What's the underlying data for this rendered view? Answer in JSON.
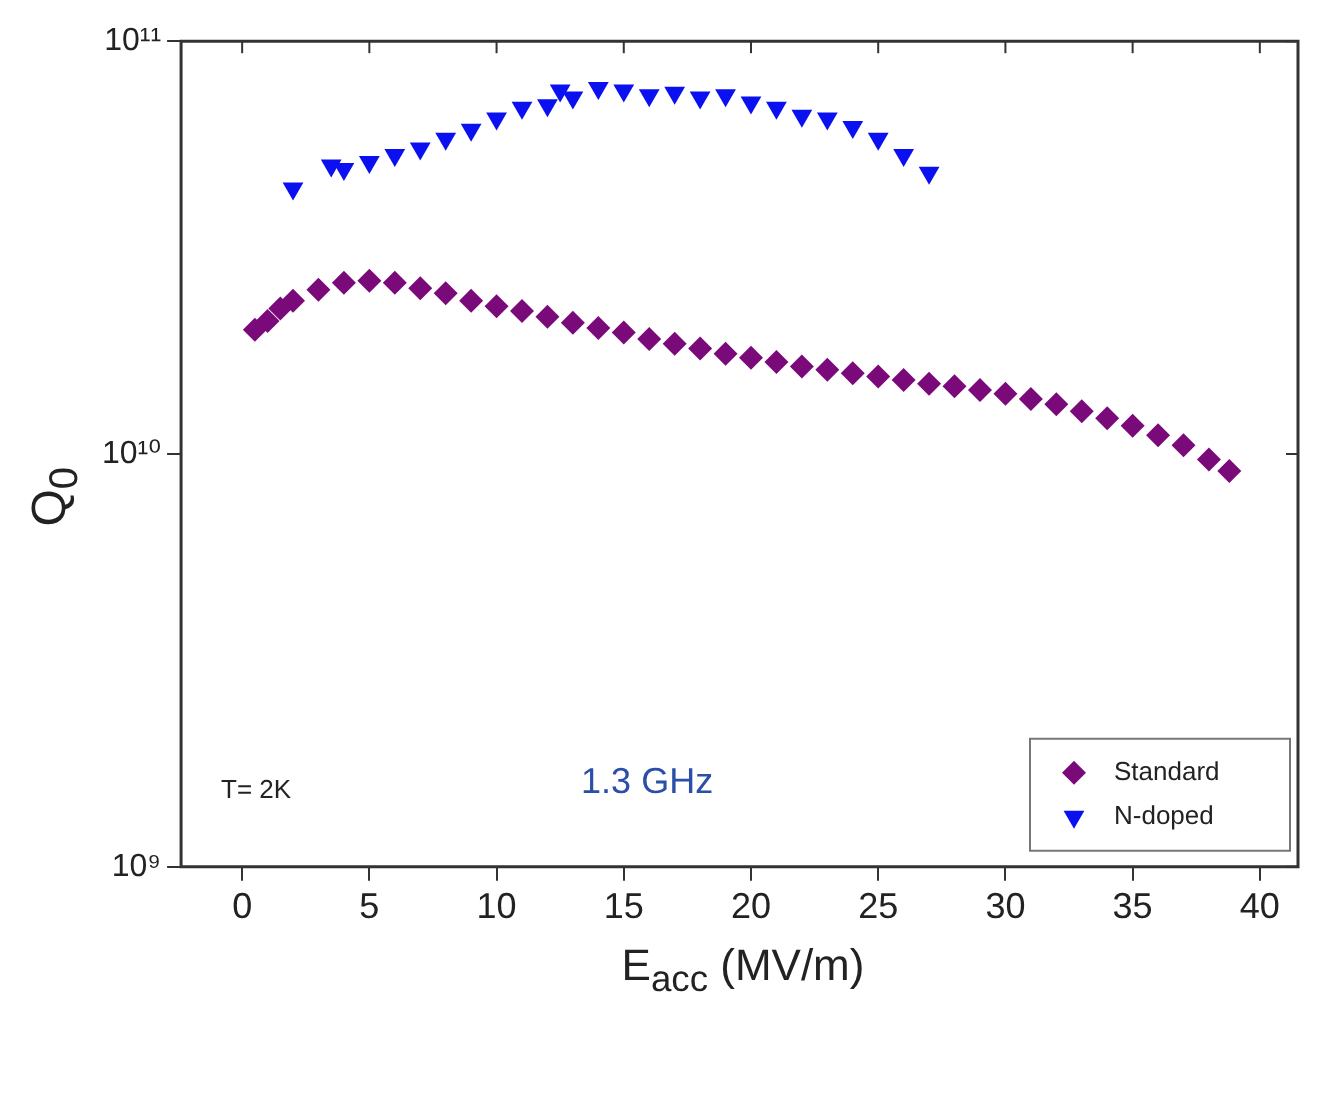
{
  "chart_data": {
    "type": "scatter",
    "xlabel": "E$_{acc}$ (MV/m)",
    "ylabel": "Q$_{0}$",
    "log": "y",
    "grid": false,
    "legend": "bottom right",
    "xlim": [
      -2.4,
      41.5
    ],
    "xticks": [
      0,
      5,
      10,
      15,
      20,
      25,
      30,
      35,
      40
    ],
    "ylim": [
      1000000000.0,
      100000000000.0
    ],
    "yticks": [
      {
        "value": 1000000000.0,
        "label": "10⁹"
      },
      {
        "value": 10000000000.0,
        "label": "10¹⁰"
      },
      {
        "value": 100000000000.0,
        "label": "10¹¹"
      }
    ],
    "annotations": [
      "T= 2K",
      "1.3 GHz"
    ],
    "series": [
      {
        "name": "Standard",
        "color": "#7a0a7a",
        "marker": "diamond",
        "x": [
          0.5,
          1,
          1.5,
          2,
          3,
          4,
          5,
          6,
          7,
          8,
          9,
          10,
          11,
          12,
          13,
          14,
          15,
          16,
          17,
          18,
          19,
          20,
          21,
          22,
          23,
          24,
          25,
          26,
          27,
          28,
          29,
          30,
          31,
          32,
          33,
          34,
          35,
          36,
          37,
          38,
          38.8
        ],
        "values": [
          20000000000.0,
          21000000000.0,
          22500000000.0,
          23500000000.0,
          25000000000.0,
          26000000000.0,
          26300000000.0,
          26000000000.0,
          25200000000.0,
          24500000000.0,
          23500000000.0,
          22800000000.0,
          22200000000.0,
          21500000000.0,
          20800000000.0,
          20200000000.0,
          19700000000.0,
          19000000000.0,
          18500000000.0,
          18000000000.0,
          17500000000.0,
          17100000000.0,
          16700000000.0,
          16300000000.0,
          16000000000.0,
          15700000000.0,
          15400000000.0,
          15100000000.0,
          14800000000.0,
          14600000000.0,
          14300000000.0,
          14000000000.0,
          13600000000.0,
          13200000000.0,
          12700000000.0,
          12200000000.0,
          11700000000.0,
          11100000000.0,
          10500000000.0,
          9700000000.0,
          9100000000.0
        ]
      },
      {
        "name": "N-doped",
        "color": "#0a10f0",
        "marker": "triangle",
        "x": [
          2,
          3.5,
          4,
          5,
          6,
          7,
          8,
          9,
          10,
          11,
          12,
          12.5,
          13,
          14,
          15,
          16,
          17,
          18,
          19,
          20,
          21,
          22,
          23,
          24,
          25,
          26,
          27
        ],
        "values": [
          44000000000.0,
          50000000000.0,
          49000000000.0,
          51000000000.0,
          53000000000.0,
          55000000000.0,
          58000000000.0,
          61000000000.0,
          65000000000.0,
          69000000000.0,
          70000000000.0,
          76000000000.0,
          73000000000.0,
          77000000000.0,
          76000000000.0,
          74000000000.0,
          75000000000.0,
          73000000000.0,
          74000000000.0,
          71000000000.0,
          69000000000.0,
          66000000000.0,
          65000000000.0,
          62000000000.0,
          58000000000.0,
          53000000000.0,
          48000000000.0
        ]
      }
    ]
  }
}
